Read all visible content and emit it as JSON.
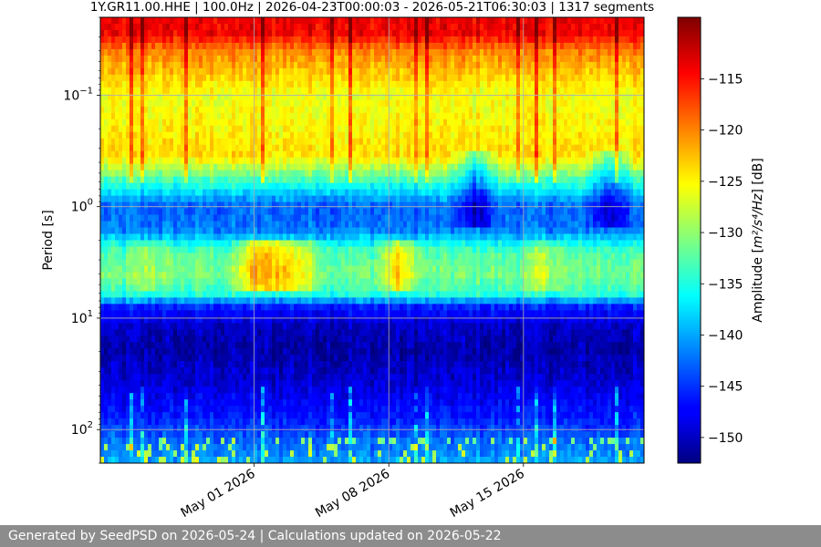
{
  "chart_data": {
    "type": "heatmap",
    "title": "1Y.GR11.00.HHE | 100.0Hz | 2026-04-23T00:00:03 - 2026-05-21T06:30:03 | 1317 segments",
    "ylabel": "Period [s]",
    "xlabel": "",
    "y_scale": "log",
    "y_inverted": true,
    "ylim": [
      0.02,
      200
    ],
    "y_ticks": [
      {
        "value": 0.1,
        "base": "10",
        "exp": "−1"
      },
      {
        "value": 1,
        "base": "10",
        "exp": "0"
      },
      {
        "value": 10,
        "base": "10",
        "exp": "1"
      },
      {
        "value": 100,
        "base": "10",
        "exp": "2"
      }
    ],
    "xlim": [
      "2026-04-23T00:00:03",
      "2026-05-21T06:30:03"
    ],
    "x_ticks": [
      {
        "value": "2026-05-01",
        "label": "May 01 2026"
      },
      {
        "value": "2026-05-08",
        "label": "May 08 2026"
      },
      {
        "value": "2026-05-15",
        "label": "May 15 2026"
      }
    ],
    "grid": true,
    "colormap": "jet",
    "colorbar": {
      "label_prefix": "Amplitude [",
      "label_unit": "m²/s⁴/Hz",
      "label_suffix": "] [dB]",
      "range": [
        -152.5,
        -109
      ],
      "ticks": [
        {
          "value": -115,
          "label": "−115"
        },
        {
          "value": -120,
          "label": "−120"
        },
        {
          "value": -125,
          "label": "−125"
        },
        {
          "value": -130,
          "label": "−130"
        },
        {
          "value": -135,
          "label": "−135"
        },
        {
          "value": -140,
          "label": "−140"
        },
        {
          "value": -145,
          "label": "−145"
        },
        {
          "value": -150,
          "label": "−150"
        }
      ]
    },
    "period_profile": [
      {
        "period": 0.02,
        "db": -114
      },
      {
        "period": 0.028,
        "db": -114
      },
      {
        "period": 0.04,
        "db": -120
      },
      {
        "period": 0.065,
        "db": -123
      },
      {
        "period": 0.1,
        "db": -126
      },
      {
        "period": 0.2,
        "db": -125
      },
      {
        "period": 0.35,
        "db": -124
      },
      {
        "period": 0.7,
        "db": -137
      },
      {
        "period": 1.0,
        "db": -143
      },
      {
        "period": 1.6,
        "db": -142
      },
      {
        "period": 2.5,
        "db": -133
      },
      {
        "period": 4.0,
        "db": -131
      },
      {
        "period": 6.0,
        "db": -134
      },
      {
        "period": 8.0,
        "db": -146
      },
      {
        "period": 12.0,
        "db": -150
      },
      {
        "period": 20.0,
        "db": -151
      },
      {
        "period": 40.0,
        "db": -149
      },
      {
        "period": 80.0,
        "db": -146
      },
      {
        "period": 120.0,
        "db": -143
      },
      {
        "period": 200.0,
        "db": -140
      }
    ],
    "events": [
      {
        "date": "2026-04-25T12:00:00",
        "period_min": 2.0,
        "period_max": 6.0,
        "boost_db": 3
      },
      {
        "date": "2026-05-01T00:00:00",
        "period_min": 2.0,
        "period_max": 6.0,
        "boost_db": 9
      },
      {
        "date": "2026-05-02T06:00:00",
        "period_min": 2.0,
        "period_max": 6.0,
        "boost_db": 9
      },
      {
        "date": "2026-05-03T12:00:00",
        "period_min": 2.0,
        "period_max": 6.0,
        "boost_db": 6
      },
      {
        "date": "2026-05-08T12:00:00",
        "period_min": 2.0,
        "period_max": 6.0,
        "boost_db": 8
      },
      {
        "date": "2026-05-12T12:00:00",
        "period_min": 0.3,
        "period_max": 1.5,
        "boost_db": -8
      },
      {
        "date": "2026-05-16T00:00:00",
        "period_min": 2.0,
        "period_max": 6.0,
        "boost_db": 4
      },
      {
        "date": "2026-05-19T12:00:00",
        "period_min": 0.3,
        "period_max": 1.5,
        "boost_db": -7
      }
    ]
  },
  "footer": {
    "text": "Generated by SeedPSD on 2026-05-24 | Calculations updated on 2026-05-22"
  }
}
